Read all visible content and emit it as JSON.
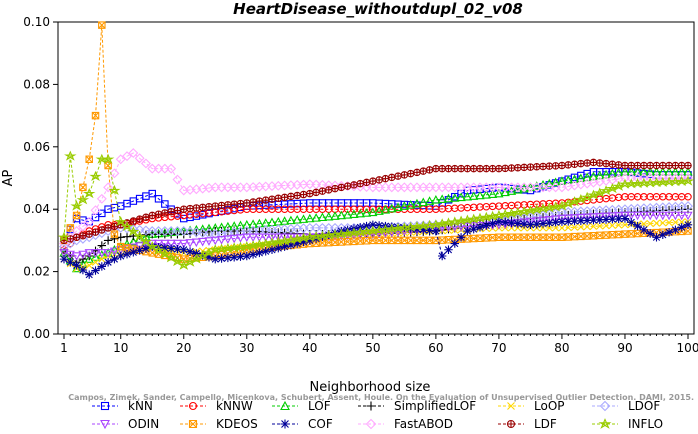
{
  "chart_data": {
    "type": "line",
    "title": "HeartDisease_withoutdupl_02_v08",
    "xlabel": "Neighborhood size",
    "ylabel": "AP",
    "xlim": [
      1,
      100
    ],
    "ylim": [
      0.0,
      0.1
    ],
    "x_ticks": [
      "1",
      "10",
      "20",
      "30",
      "40",
      "50",
      "60",
      "70",
      "80",
      "90",
      "100"
    ],
    "y_ticks": [
      "0.00",
      "0.02",
      "0.04",
      "0.06",
      "0.08",
      "0.10"
    ],
    "grid": false,
    "legend_position": "bottom",
    "watermark": "Campos, Zimek, Sander, Campello, Micenkova, Schubert, Assent, Houle. On the Evaluation of Unsupervised Outlier Detection. DAMI, 2015.",
    "series": [
      {
        "name": "kNN",
        "color": "#0000ff",
        "marker": "square",
        "x": [
          1,
          3,
          5,
          8,
          10,
          15,
          18,
          20,
          25,
          30,
          40,
          50,
          60,
          65,
          70,
          75,
          80,
          85,
          90,
          95,
          100
        ],
        "y": [
          0.03,
          0.037,
          0.036,
          0.04,
          0.041,
          0.045,
          0.04,
          0.037,
          0.039,
          0.041,
          0.042,
          0.042,
          0.041,
          0.046,
          0.047,
          0.046,
          0.049,
          0.052,
          0.052,
          0.051,
          0.051
        ]
      },
      {
        "name": "kNNW",
        "color": "#ff0000",
        "marker": "circle",
        "x": [
          1,
          3,
          5,
          8,
          10,
          15,
          20,
          25,
          30,
          40,
          50,
          60,
          70,
          80,
          90,
          100
        ],
        "y": [
          0.027,
          0.031,
          0.033,
          0.035,
          0.035,
          0.037,
          0.038,
          0.039,
          0.04,
          0.04,
          0.04,
          0.04,
          0.041,
          0.042,
          0.044,
          0.044
        ]
      },
      {
        "name": "LOF",
        "color": "#00cc00",
        "marker": "triangle",
        "x": [
          1,
          3,
          5,
          8,
          10,
          15,
          20,
          25,
          30,
          40,
          50,
          60,
          70,
          80,
          90,
          100
        ],
        "y": [
          0.026,
          0.021,
          0.024,
          0.026,
          0.028,
          0.032,
          0.033,
          0.034,
          0.035,
          0.037,
          0.039,
          0.043,
          0.045,
          0.049,
          0.052,
          0.052
        ]
      },
      {
        "name": "SimplifiedLOF",
        "color": "#000000",
        "marker": "plus",
        "x": [
          1,
          3,
          5,
          8,
          10,
          15,
          20,
          25,
          30,
          40,
          50,
          60,
          70,
          80,
          90,
          100
        ],
        "y": [
          0.027,
          0.023,
          0.025,
          0.03,
          0.031,
          0.032,
          0.032,
          0.033,
          0.033,
          0.032,
          0.032,
          0.033,
          0.036,
          0.038,
          0.039,
          0.04
        ]
      },
      {
        "name": "LoOP",
        "color": "#ffd700",
        "marker": "x",
        "x": [
          1,
          3,
          5,
          8,
          10,
          15,
          20,
          25,
          30,
          40,
          50,
          60,
          70,
          80,
          90,
          100
        ],
        "y": [
          0.024,
          0.021,
          0.022,
          0.025,
          0.026,
          0.028,
          0.026,
          0.027,
          0.028,
          0.03,
          0.032,
          0.033,
          0.034,
          0.034,
          0.035,
          0.036
        ]
      },
      {
        "name": "LDOF",
        "color": "#aaaaff",
        "marker": "diamond",
        "x": [
          1,
          3,
          5,
          8,
          10,
          15,
          20,
          25,
          30,
          40,
          50,
          60,
          70,
          80,
          90,
          100
        ],
        "y": [
          0.028,
          0.03,
          0.031,
          0.033,
          0.034,
          0.033,
          0.033,
          0.032,
          0.033,
          0.034,
          0.034,
          0.035,
          0.036,
          0.039,
          0.04,
          0.041
        ]
      },
      {
        "name": "ODIN",
        "color": "#aa44ff",
        "marker": "triangle-down",
        "x": [
          1,
          3,
          5,
          8,
          10,
          15,
          20,
          25,
          30,
          40,
          50,
          60,
          70,
          80,
          90,
          100
        ],
        "y": [
          0.026,
          0.025,
          0.026,
          0.026,
          0.027,
          0.029,
          0.029,
          0.03,
          0.031,
          0.031,
          0.032,
          0.034,
          0.035,
          0.037,
          0.038,
          0.038
        ]
      },
      {
        "name": "KDEOS",
        "color": "#ff9900",
        "marker": "square-x",
        "x": [
          1,
          3,
          5,
          6,
          7,
          8,
          9,
          10,
          15,
          20,
          25,
          30,
          40,
          50,
          60,
          70,
          80,
          90,
          100
        ],
        "y": [
          0.03,
          0.038,
          0.056,
          0.07,
          0.099,
          0.054,
          0.032,
          0.028,
          0.026,
          0.024,
          0.025,
          0.027,
          0.029,
          0.03,
          0.03,
          0.031,
          0.031,
          0.032,
          0.033
        ]
      },
      {
        "name": "COF",
        "color": "#000099",
        "marker": "asterisk",
        "x": [
          1,
          3,
          5,
          8,
          10,
          15,
          20,
          25,
          30,
          40,
          45,
          50,
          55,
          60,
          61,
          65,
          70,
          75,
          80,
          90,
          95,
          100
        ],
        "y": [
          0.024,
          0.022,
          0.019,
          0.023,
          0.025,
          0.028,
          0.027,
          0.024,
          0.025,
          0.03,
          0.033,
          0.035,
          0.034,
          0.033,
          0.025,
          0.033,
          0.036,
          0.035,
          0.036,
          0.037,
          0.031,
          0.035
        ]
      },
      {
        "name": "FastABOD",
        "color": "#ffaaff",
        "marker": "diamond",
        "x": [
          1,
          3,
          5,
          8,
          10,
          12,
          15,
          18,
          20,
          25,
          30,
          40,
          50,
          60,
          70,
          80,
          90,
          100
        ],
        "y": [
          0.029,
          0.033,
          0.036,
          0.047,
          0.056,
          0.058,
          0.053,
          0.053,
          0.046,
          0.047,
          0.047,
          0.048,
          0.047,
          0.047,
          0.047,
          0.047,
          0.05,
          0.05
        ]
      },
      {
        "name": "LDF",
        "color": "#990000",
        "marker": "circle-plus",
        "x": [
          1,
          3,
          5,
          8,
          10,
          15,
          20,
          25,
          30,
          40,
          50,
          55,
          60,
          70,
          80,
          85,
          90,
          100
        ],
        "y": [
          0.03,
          0.031,
          0.032,
          0.034,
          0.035,
          0.038,
          0.04,
          0.041,
          0.042,
          0.045,
          0.049,
          0.051,
          0.053,
          0.053,
          0.054,
          0.055,
          0.054,
          0.054
        ]
      },
      {
        "name": "INFLO",
        "color": "#99cc00",
        "marker": "star",
        "x": [
          1,
          2,
          3,
          5,
          7,
          8,
          10,
          15,
          20,
          25,
          30,
          40,
          50,
          60,
          70,
          80,
          90,
          100
        ],
        "y": [
          0.031,
          0.057,
          0.041,
          0.045,
          0.056,
          0.056,
          0.036,
          0.028,
          0.022,
          0.027,
          0.028,
          0.031,
          0.033,
          0.035,
          0.038,
          0.041,
          0.048,
          0.049
        ]
      }
    ]
  }
}
